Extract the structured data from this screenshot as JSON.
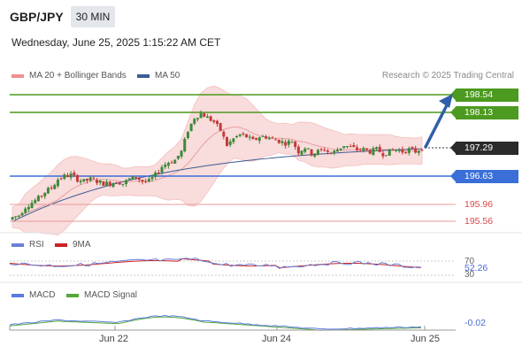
{
  "header": {
    "symbol": "GBP/JPY",
    "timeframe": "30 MIN",
    "datetime": "Wednesday, June 25, 2025 1:15:22 AM CET"
  },
  "legend": {
    "bb_label": "MA 20 + Bollinger Bands",
    "ma50_label": "MA 50",
    "credit": "Research © 2025 Trading Central"
  },
  "levels": {
    "r2": "198.54",
    "r1": "198.13",
    "current": "197.29",
    "pivot": "196.63",
    "s1": "195.96",
    "s2": "195.56"
  },
  "rsi": {
    "label": "RSI",
    "ma_label": "9MA",
    "upper": "70",
    "value": "52.26",
    "lower": "30"
  },
  "macd": {
    "label": "MACD",
    "signal_label": "MACD Signal",
    "value": "-0.02"
  },
  "xaxis": [
    "Jun 22",
    "Jun 24",
    "Jun 25"
  ],
  "colors": {
    "resistance": "#4c9a1f",
    "pivot": "#3a6fd8",
    "support": "#e06565",
    "current": "#2b2b2b",
    "bull_candle": "#3d8a3a",
    "bear_candle": "#c63a3a",
    "ma50": "#3b5d93",
    "ma20": "#e8a0a0",
    "band_fill": "#f9d6d6",
    "arrow": "#2f5fa8",
    "rsi": "#6a7fd6",
    "rsi_ma": "#cc2222",
    "macd": "#5b7be0",
    "macd_signal": "#55a83a"
  },
  "chart_data": {
    "type": "candlestick",
    "y_range": [
      195.45,
      198.72
    ],
    "levels": [
      198.54,
      198.13,
      197.29,
      196.63,
      195.96,
      195.56
    ],
    "x_ticks": [
      "Jun 22",
      "Jun 24",
      "Jun 25"
    ],
    "close_path": [
      195.65,
      195.7,
      195.9,
      196.0,
      196.1,
      196.25,
      196.35,
      196.55,
      196.62,
      196.65,
      196.55,
      196.5,
      196.55,
      196.5,
      196.45,
      196.45,
      196.5,
      196.45,
      196.55,
      196.6,
      196.5,
      196.5,
      196.65,
      196.85,
      196.95,
      197.0,
      197.2,
      197.7,
      198.0,
      198.1,
      198.0,
      197.9,
      197.7,
      197.35,
      197.5,
      197.6,
      197.55,
      197.45,
      197.55,
      197.55,
      197.5,
      197.45,
      197.4,
      197.45,
      197.2,
      197.3,
      197.15,
      197.2,
      197.25,
      197.15,
      197.25,
      197.35,
      197.3,
      197.25,
      197.25,
      197.2,
      197.25,
      197.15,
      197.2,
      197.25,
      197.2,
      197.25,
      197.2,
      197.29
    ],
    "rsi": {
      "value": 52.26,
      "levels": [
        70,
        30
      ]
    },
    "macd": {
      "value": -0.02
    }
  }
}
